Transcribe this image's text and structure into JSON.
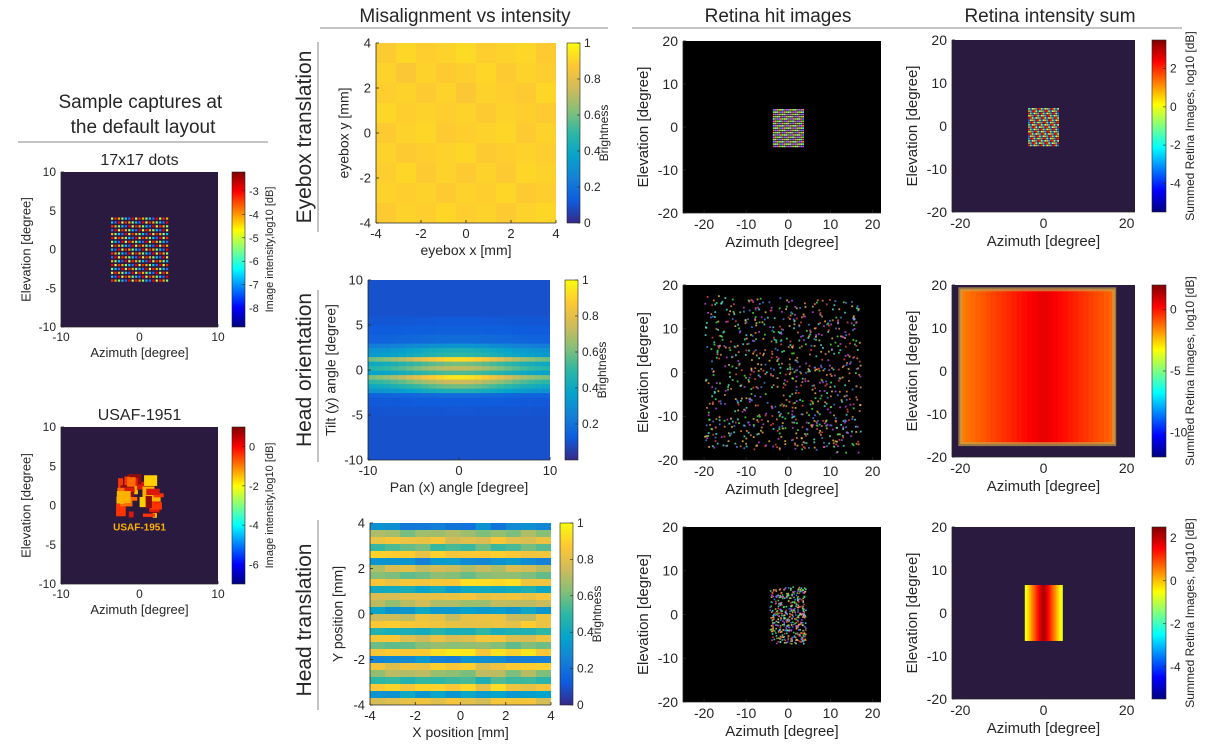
{
  "headers": {
    "misalignment": "Misalignment vs intensity",
    "retina_hit": "Retina hit images",
    "retina_sum": "Retina intensity sum",
    "sample_title": "Sample captures at the default layout"
  },
  "row_labels": [
    "Eyebox translation",
    "Head orientation",
    "Head translation"
  ],
  "colormaps": {
    "parula": [
      "#352a87",
      "#0f5cdd",
      "#1481d6",
      "#06a4ca",
      "#2eb7a4",
      "#87bf77",
      "#d1bb59",
      "#fec832",
      "#f9fb0e"
    ],
    "jet": [
      "#00007f",
      "#0000ff",
      "#007fff",
      "#00ffff",
      "#7fff7f",
      "#ffff00",
      "#ff7f00",
      "#ff0000",
      "#7f0000"
    ]
  },
  "colors": {
    "background_dark": "#2b1a3f",
    "retina_black": "#000000",
    "axis": "#262626"
  },
  "chart_data": [
    {
      "type": "heatmap",
      "id": "s1",
      "title": "17x17 dots",
      "xlabel": "Azimuth [degree]",
      "ylabel": "Elevation [degree]",
      "xlim": [
        -10,
        10
      ],
      "ylim": [
        -10,
        10
      ],
      "xticks": [
        -10,
        0,
        10
      ],
      "yticks": [
        -10,
        -5,
        0,
        5,
        10
      ],
      "colorbar": {
        "label": "Image intensity,log10 [dB]",
        "range": [
          -8.8,
          -2.2
        ],
        "ticks": [
          -8,
          -7,
          -6,
          -5,
          -4,
          -3
        ],
        "cmap": "jet"
      },
      "content": {
        "kind": "dot_grid",
        "n": 17,
        "extent": [
          -3.5,
          3.5,
          -4,
          4
        ]
      }
    },
    {
      "type": "heatmap",
      "id": "s2",
      "title": "USAF-1951",
      "xlabel": "Azimuth [degree]",
      "ylabel": "Elevation [degree]",
      "xlim": [
        -10,
        10
      ],
      "ylim": [
        -10,
        10
      ],
      "xticks": [
        -10,
        0,
        10
      ],
      "yticks": [
        -10,
        -5,
        0,
        5,
        10
      ],
      "annotation": "USAF-1951",
      "colorbar": {
        "label": "Image intensity,log10 [dB]",
        "range": [
          -7,
          1
        ],
        "ticks": [
          -6,
          -4,
          -2,
          0
        ],
        "cmap": "jet"
      },
      "content": {
        "kind": "usaf",
        "extent": [
          -3,
          3,
          -3.5,
          3.5
        ]
      }
    },
    {
      "type": "heatmap",
      "id": "m1",
      "xlabel": "eyebox x [mm]",
      "ylabel": "eyebox y [mm]",
      "xlim": [
        -4,
        4
      ],
      "ylim": [
        -4,
        4
      ],
      "xticks": [
        -4,
        -2,
        0,
        2,
        4
      ],
      "yticks": [
        -4,
        -2,
        0,
        2,
        4
      ],
      "colorbar": {
        "label": "Brightness",
        "range": [
          0,
          1
        ],
        "ticks": [
          0,
          0.2,
          0.4,
          0.6,
          0.8,
          1
        ],
        "cmap": "parula"
      },
      "grid_values": [
        [
          0.88,
          0.91,
          0.89,
          0.9,
          0.92,
          0.89,
          0.9,
          0.91,
          0.88
        ],
        [
          0.9,
          0.87,
          0.9,
          0.88,
          0.89,
          0.91,
          0.88,
          0.9,
          0.89
        ],
        [
          0.89,
          0.9,
          0.88,
          0.9,
          0.87,
          0.9,
          0.89,
          0.88,
          0.91
        ],
        [
          0.91,
          0.89,
          0.9,
          0.89,
          0.9,
          0.88,
          0.9,
          0.89,
          0.88
        ],
        [
          0.88,
          0.9,
          0.91,
          0.88,
          0.89,
          0.9,
          0.91,
          0.88,
          0.9
        ],
        [
          0.9,
          0.88,
          0.89,
          0.9,
          0.91,
          0.88,
          0.89,
          0.9,
          0.89
        ],
        [
          0.89,
          0.91,
          0.88,
          0.9,
          0.88,
          0.9,
          0.88,
          0.91,
          0.9
        ],
        [
          0.9,
          0.89,
          0.9,
          0.88,
          0.9,
          0.89,
          0.91,
          0.88,
          0.89
        ],
        [
          0.88,
          0.9,
          0.89,
          0.91,
          0.89,
          0.9,
          0.88,
          0.9,
          0.91
        ]
      ]
    },
    {
      "type": "heatmap",
      "id": "m2",
      "xlabel": "Pan (x) angle [degree]",
      "ylabel": "Tilt (y) angle [degree]",
      "xlim": [
        -10,
        10
      ],
      "ylim": [
        -10,
        10
      ],
      "xticks": [
        -10,
        0,
        10
      ],
      "yticks": [
        -10,
        -5,
        0,
        5,
        10
      ],
      "colorbar": {
        "label": "Brightness",
        "range": [
          0,
          1
        ],
        "ticks": [
          0.2,
          0.4,
          0.6,
          0.8,
          1
        ],
        "cmap": "parula"
      },
      "y_values": [
        -10,
        -9,
        -8,
        -7,
        -6,
        -5,
        -4,
        -3,
        -2.5,
        -2,
        -1.5,
        -1,
        -0.5,
        0,
        0.5,
        1,
        1.5,
        2,
        2.5,
        3,
        4,
        5,
        6,
        7,
        8,
        9,
        10
      ],
      "row_peak": [
        0.1,
        0.1,
        0.1,
        0.1,
        0.1,
        0.11,
        0.13,
        0.18,
        0.45,
        0.6,
        0.75,
        0.95,
        0.55,
        0.72,
        0.6,
        0.92,
        0.5,
        0.45,
        0.32,
        0.18,
        0.14,
        0.12,
        0.1,
        0.1,
        0.1,
        0.1,
        0.1
      ]
    },
    {
      "type": "heatmap",
      "id": "m3",
      "xlabel": "X position [mm]",
      "ylabel": "Y position [mm]",
      "xlim": [
        -4,
        4
      ],
      "ylim": [
        -4,
        4
      ],
      "xticks": [
        -4,
        -2,
        0,
        2,
        4
      ],
      "yticks": [
        -4,
        -2,
        0,
        2,
        4
      ],
      "colorbar": {
        "label": "Brightness",
        "range": [
          0,
          1
        ],
        "ticks": [
          0,
          0.2,
          0.4,
          0.6,
          0.8,
          1
        ],
        "cmap": "parula"
      },
      "row_values": [
        0.25,
        0.65,
        0.8,
        0.55,
        0.85,
        0.3,
        0.75,
        0.6,
        0.88,
        0.4,
        0.82,
        0.7,
        0.35,
        0.78,
        0.86,
        0.45,
        0.8,
        0.62,
        0.9,
        0.28,
        0.84,
        0.66,
        0.5,
        0.87,
        0.35,
        0.8
      ]
    },
    {
      "type": "heatmap",
      "id": "h1",
      "xlabel": "Azimuth [degree]",
      "ylabel": "Elevation [degree]",
      "xlim": [
        -25,
        22
      ],
      "ylim": [
        -20,
        20
      ],
      "xticks": [
        -20,
        -10,
        0,
        10,
        20
      ],
      "yticks": [
        -20,
        -10,
        0,
        10,
        20
      ],
      "content": {
        "kind": "rgb_dots",
        "extent": [
          -3.5,
          3.5,
          -4.5,
          4
        ]
      }
    },
    {
      "type": "heatmap",
      "id": "h2",
      "xlabel": "Azimuth [degree]",
      "ylabel": "Elevation [degree]",
      "xlim": [
        -25,
        22
      ],
      "ylim": [
        -20,
        20
      ],
      "xticks": [
        -20,
        -10,
        0,
        10,
        20
      ],
      "yticks": [
        -20,
        -10,
        0,
        10,
        20
      ],
      "content": {
        "kind": "rgb_cloud",
        "extent": [
          -20,
          17,
          -17,
          18
        ]
      }
    },
    {
      "type": "heatmap",
      "id": "h3",
      "xlabel": "Azimuth [degree]",
      "ylabel": "Elevation [degree]",
      "xlim": [
        -25,
        22
      ],
      "ylim": [
        -20,
        20
      ],
      "xticks": [
        -20,
        -10,
        0,
        10,
        20
      ],
      "yticks": [
        -20,
        -10,
        0,
        10,
        20
      ],
      "content": {
        "kind": "rgb_block",
        "extent": [
          -4.5,
          4,
          -6.5,
          6.5
        ]
      }
    },
    {
      "type": "heatmap",
      "id": "r1",
      "xlabel": "Azimuth [degree]",
      "ylabel": "Elevation [degree]",
      "xlim": [
        -22,
        22
      ],
      "ylim": [
        -20,
        20
      ],
      "xticks": [
        -20,
        0,
        20
      ],
      "yticks": [
        -20,
        -10,
        0,
        10,
        20
      ],
      "colorbar": {
        "label": "Summed Retina Images, log10 [dB]",
        "range": [
          -5.5,
          3.5
        ],
        "ticks": [
          -4,
          -2,
          0,
          2
        ],
        "cmap": "jet"
      },
      "content": {
        "kind": "jet_dots",
        "extent": [
          -3.5,
          3.5,
          -4.5,
          4
        ]
      }
    },
    {
      "type": "heatmap",
      "id": "r2",
      "xlabel": "Azimuth [degree]",
      "ylabel": "Elevation [degree]",
      "xlim": [
        -22,
        22
      ],
      "ylim": [
        -20,
        20
      ],
      "xticks": [
        -20,
        0,
        20
      ],
      "yticks": [
        -20,
        -10,
        0,
        10,
        20
      ],
      "colorbar": {
        "label": "Summed Retina Images, log10 [dB]",
        "range": [
          -12,
          2
        ],
        "ticks": [
          -10,
          -5,
          0
        ],
        "cmap": "jet"
      },
      "content": {
        "kind": "wide_field",
        "extent": [
          -20,
          17,
          -17,
          19
        ]
      }
    },
    {
      "type": "heatmap",
      "id": "r3",
      "xlabel": "Azimuth [degree]",
      "ylabel": "Elevation [degree]",
      "xlim": [
        -22,
        22
      ],
      "ylim": [
        -20,
        20
      ],
      "xticks": [
        -20,
        0,
        20
      ],
      "yticks": [
        -20,
        -10,
        0,
        10,
        20
      ],
      "colorbar": {
        "label": "Summed Retina Images, log10 [dB]",
        "range": [
          -5.5,
          2.5
        ],
        "ticks": [
          -4,
          -2,
          0,
          2
        ],
        "cmap": "jet"
      },
      "content": {
        "kind": "narrow_field",
        "extent": [
          -4.5,
          4.5,
          -6.5,
          6.5
        ]
      }
    }
  ]
}
